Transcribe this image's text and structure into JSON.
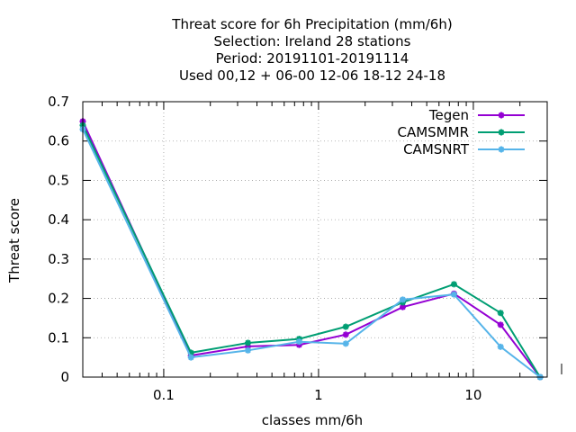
{
  "chart_data": {
    "type": "line",
    "title_lines": [
      "Threat score  for 6h Precipitation (mm/6h)",
      "Selection: Ireland      28 stations",
      "Period: 20191101-20191114",
      "Used  00,12  + 06-00 12-06 18-12 24-18"
    ],
    "xlabel": "classes mm/6h",
    "ylabel": "Threat score",
    "xscale": "log",
    "xlim": [
      0.03,
      30
    ],
    "ylim": [
      0,
      0.7
    ],
    "x_ticks": [
      0.1,
      1,
      10
    ],
    "x_tick_labels": [
      "0.1",
      "1",
      "10"
    ],
    "y_ticks": [
      0,
      0.1,
      0.2,
      0.3,
      0.4,
      0.5,
      0.6,
      0.7
    ],
    "y_tick_labels": [
      "0",
      "0.1",
      "0.2",
      "0.3",
      "0.4",
      "0.5",
      "0.6",
      "0.7"
    ],
    "grid": true,
    "legend_position": "top-right",
    "x": [
      0.03,
      0.15,
      0.35,
      0.75,
      1.5,
      3.5,
      7.5,
      15,
      27
    ],
    "series": [
      {
        "name": "Tegen",
        "color": "#9400d3",
        "values": [
          0.65,
          0.055,
          0.078,
          0.082,
          0.108,
          0.178,
          0.212,
          0.133,
          0.0
        ]
      },
      {
        "name": "CAMSMMR",
        "color": "#009e73",
        "values": [
          0.64,
          0.062,
          0.087,
          0.097,
          0.128,
          0.19,
          0.236,
          0.163,
          0.0
        ]
      },
      {
        "name": "CAMSNRT",
        "color": "#56b4e9",
        "values": [
          0.63,
          0.05,
          0.068,
          0.09,
          0.085,
          0.197,
          0.21,
          0.077,
          0.0
        ]
      }
    ]
  }
}
